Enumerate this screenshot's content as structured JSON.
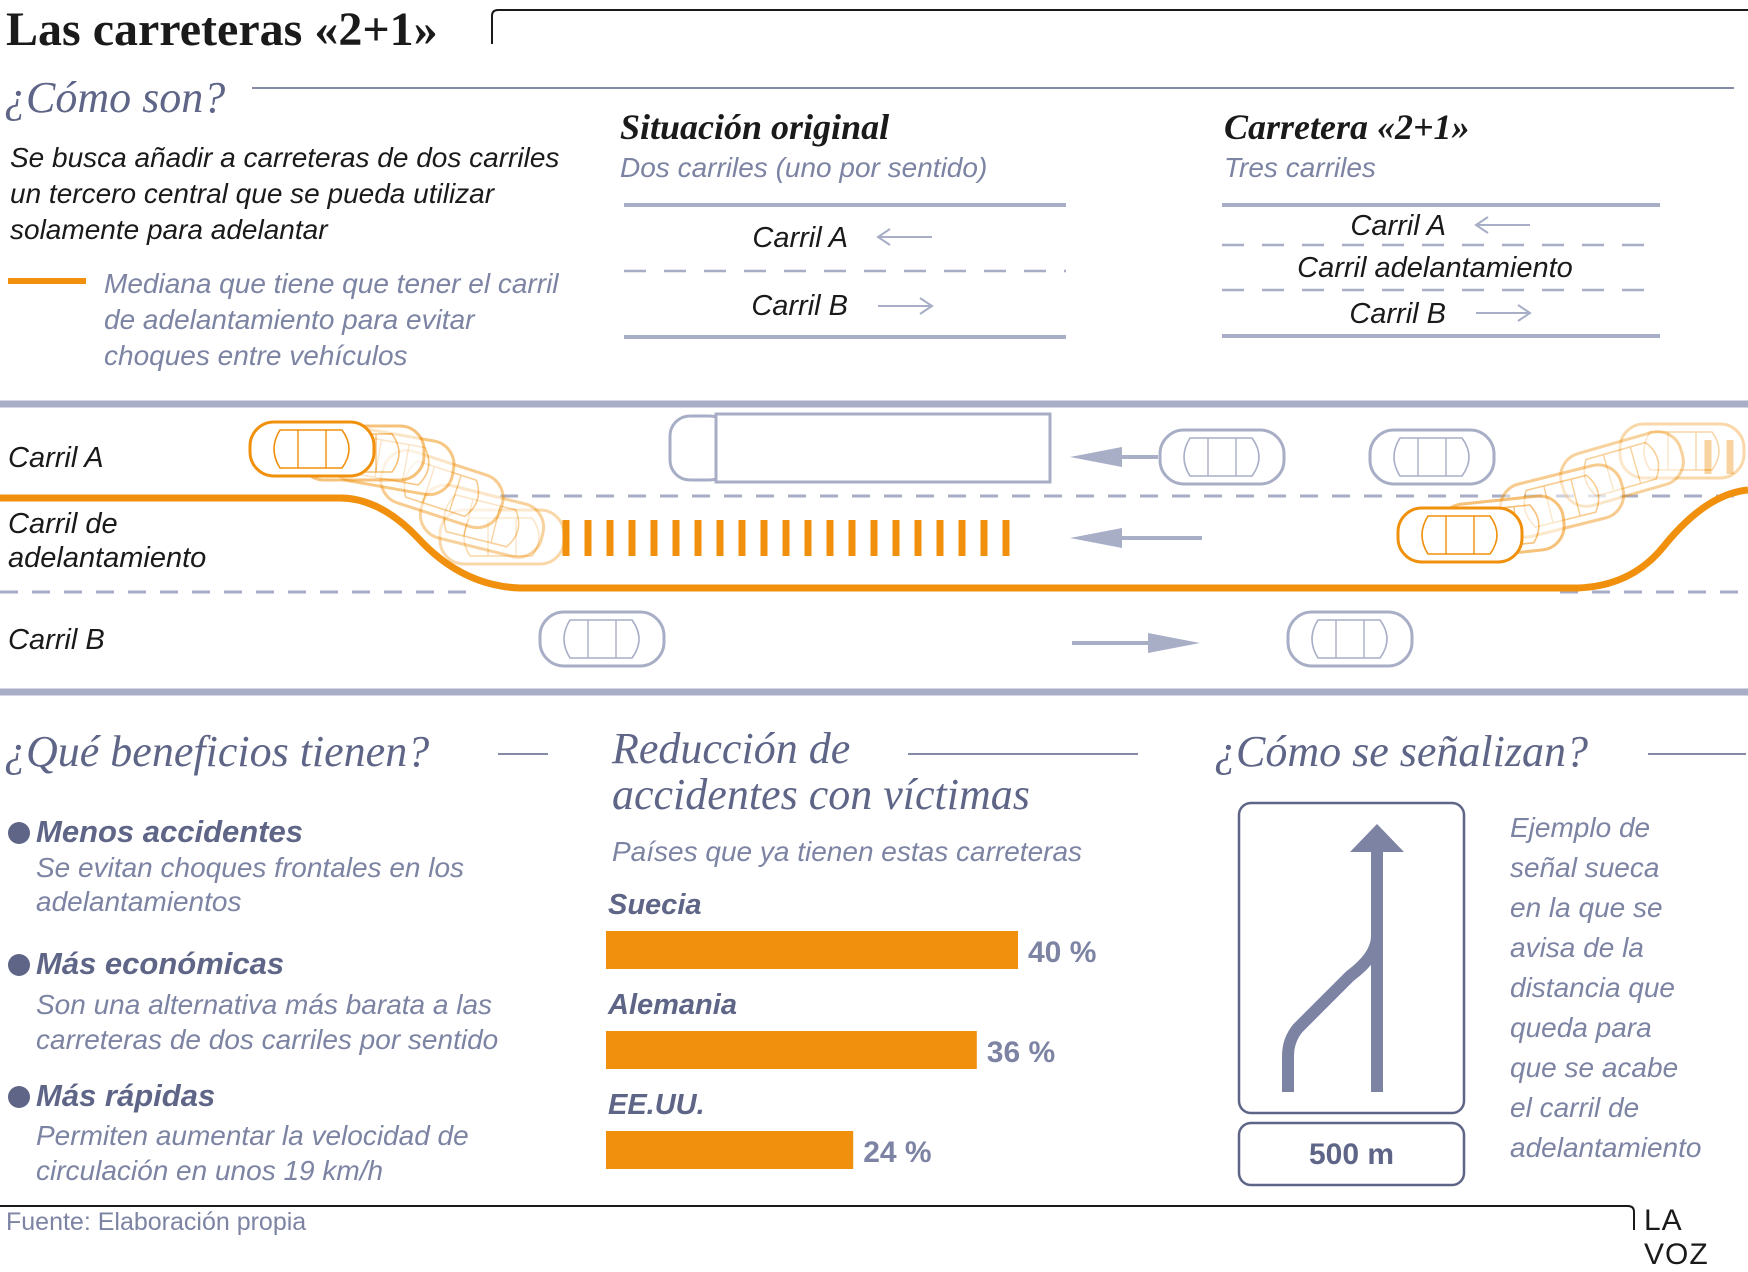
{
  "title": "Las carreteras «2+1»",
  "como_son": {
    "heading": "¿Cómo son?",
    "description": "Se busca añadir a carreteras de dos carriles un tercero central que se pueda utilizar solamente para adelantar",
    "median_legend": "Mediana que tiene que tener el carril de adelantamiento para evitar choques entre vehículos",
    "original": {
      "title": "Situación original",
      "subtitle": "Dos carriles (uno por sentido)",
      "lane_a": "Carril A",
      "lane_b": "Carril B"
    },
    "two_plus_one": {
      "title": "Carretera «2+1»",
      "subtitle": "Tres carriles",
      "lane_a": "Carril A",
      "lane_mid": "Carril adelantamiento",
      "lane_b": "Carril B"
    }
  },
  "road": {
    "lane_a": "Carril A",
    "lane_mid_1": "Carril de",
    "lane_mid_2": "adelantamiento",
    "lane_b": "Carril B"
  },
  "beneficios": {
    "heading": "¿Qué beneficios tienen?",
    "items": [
      {
        "title": "Menos accidentes",
        "text": "Se evitan choques frontales en los adelantamientos"
      },
      {
        "title": "Más económicas",
        "text": "Son una alternativa más barata a las carreteras de dos carriles por sentido"
      },
      {
        "title": "Más rápidas",
        "text": "Permiten aumentar la velocidad de circulación en unos 19 km/h"
      }
    ]
  },
  "reduccion": {
    "heading_1": "Reducción de",
    "heading_2": "accidentes con víctimas",
    "subtitle": "Países que ya tienen estas carreteras"
  },
  "chart_data": {
    "type": "bar",
    "orientation": "horizontal",
    "title": "Reducción de accidentes con víctimas",
    "subtitle": "Países que ya tienen estas carreteras",
    "categories": [
      "Suecia",
      "Alemania",
      "EE.UU."
    ],
    "values": [
      40,
      36,
      24
    ],
    "value_labels": [
      "40 %",
      "36 %",
      "24 %"
    ],
    "unit": "%",
    "xlim": [
      0,
      40
    ],
    "bar_color": "#f0900c",
    "grid": false
  },
  "senal": {
    "heading": "¿Cómo se señalizan?",
    "distance": "500 m",
    "caption": [
      "Ejemplo de",
      "señal sueca",
      "en la que se",
      "avisa de la",
      "distancia que",
      "queda para",
      "que se acabe",
      "el carril de",
      "adelantamiento"
    ]
  },
  "footer": {
    "source": "Fuente: Elaboración propia",
    "brand": "LA VOZ"
  },
  "colors": {
    "orange": "#f0900c",
    "slate": "#5e6587",
    "grey_text": "#7d84a3",
    "road_line": "#a7aec6"
  }
}
